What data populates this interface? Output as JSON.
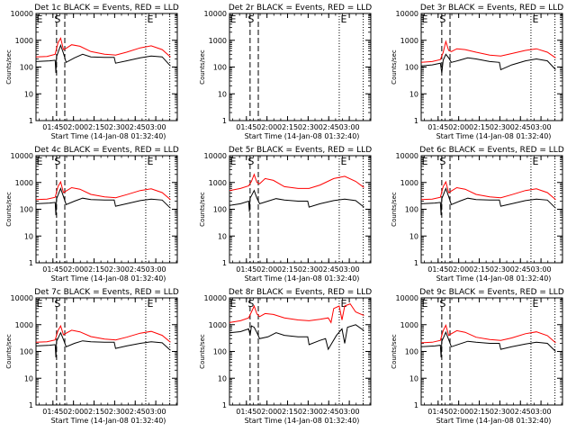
{
  "chart_data": {
    "type": "line",
    "title_template": "Det {det} BLACK = Events, RED = LLD",
    "xlabel": "Start Time (14-Jan-08 01:32:40)",
    "ylabel": "Counts/sec",
    "xlim_minutes": [
      0,
      103
    ],
    "ylim": [
      1,
      10000
    ],
    "y_scale": "log",
    "x_tick_labels": [
      "01:45",
      "02:00",
      "02:15",
      "02:30",
      "02:45",
      "03:00"
    ],
    "x_tick_minutes": [
      12.33,
      27.33,
      42.33,
      57.33,
      72.33,
      87.33
    ],
    "y_tick_labels": [
      "1",
      "10",
      "100",
      "1000",
      "10000"
    ],
    "y_tick_values": [
      1,
      10,
      100,
      1000,
      10000
    ],
    "marker_labels": [
      "S",
      "E"
    ],
    "colors": {
      "events": "#000000",
      "lld": "#ff0000"
    },
    "panels": [
      {
        "det": "1c",
        "s_lines": [
          15,
          21
        ],
        "e_line": 80,
        "s_mark": 15,
        "e_mark": 82,
        "events": [
          [
            0,
            160
          ],
          [
            10,
            170
          ],
          [
            14,
            180
          ],
          [
            14.5,
            60
          ],
          [
            15,
            250
          ],
          [
            18,
            650
          ],
          [
            20,
            330
          ],
          [
            22,
            150
          ],
          [
            28,
            220
          ],
          [
            34,
            300
          ],
          [
            40,
            240
          ],
          [
            50,
            230
          ],
          [
            57,
            230
          ],
          [
            58,
            140
          ],
          [
            66,
            170
          ],
          [
            76,
            220
          ],
          [
            84,
            260
          ],
          [
            92,
            240
          ],
          [
            98,
            110
          ]
        ],
        "lld": [
          [
            0,
            240
          ],
          [
            8,
            250
          ],
          [
            14,
            300
          ],
          [
            16,
            800
          ],
          [
            18,
            1200
          ],
          [
            20,
            450
          ],
          [
            22,
            500
          ],
          [
            26,
            680
          ],
          [
            32,
            600
          ],
          [
            40,
            380
          ],
          [
            50,
            300
          ],
          [
            58,
            280
          ],
          [
            66,
            360
          ],
          [
            76,
            520
          ],
          [
            84,
            620
          ],
          [
            92,
            450
          ],
          [
            98,
            240
          ]
        ]
      },
      {
        "det": "2r",
        "s_lines": [
          15,
          21
        ],
        "e_line": 80,
        "s_mark": 15,
        "e_mark": 82,
        "events": [],
        "lld": []
      },
      {
        "det": "3r",
        "s_lines": [
          15,
          21
        ],
        "e_line": 80,
        "s_mark": 15,
        "e_mark": 82,
        "events": [
          [
            0,
            110
          ],
          [
            8,
            120
          ],
          [
            14,
            140
          ],
          [
            15,
            60
          ],
          [
            16,
            180
          ],
          [
            18,
            300
          ],
          [
            20,
            220
          ],
          [
            22,
            150
          ],
          [
            28,
            180
          ],
          [
            34,
            220
          ],
          [
            40,
            200
          ],
          [
            50,
            160
          ],
          [
            57,
            150
          ],
          [
            58,
            80
          ],
          [
            66,
            120
          ],
          [
            76,
            170
          ],
          [
            84,
            200
          ],
          [
            92,
            170
          ],
          [
            98,
            80
          ]
        ],
        "lld": [
          [
            0,
            150
          ],
          [
            8,
            160
          ],
          [
            14,
            190
          ],
          [
            16,
            350
          ],
          [
            18,
            900
          ],
          [
            20,
            420
          ],
          [
            22,
            380
          ],
          [
            26,
            480
          ],
          [
            32,
            450
          ],
          [
            40,
            360
          ],
          [
            50,
            280
          ],
          [
            58,
            260
          ],
          [
            66,
            320
          ],
          [
            76,
            420
          ],
          [
            84,
            480
          ],
          [
            92,
            360
          ],
          [
            98,
            220
          ]
        ]
      },
      {
        "det": "4c",
        "s_lines": [
          15,
          21
        ],
        "e_line": 80,
        "s_mark": 15,
        "e_mark": 82,
        "events": [
          [
            0,
            160
          ],
          [
            10,
            170
          ],
          [
            14,
            180
          ],
          [
            14.5,
            60
          ],
          [
            15,
            250
          ],
          [
            18,
            600
          ],
          [
            20,
            300
          ],
          [
            22,
            150
          ],
          [
            28,
            200
          ],
          [
            34,
            260
          ],
          [
            40,
            230
          ],
          [
            50,
            220
          ],
          [
            57,
            220
          ],
          [
            58,
            130
          ],
          [
            66,
            160
          ],
          [
            76,
            210
          ],
          [
            84,
            240
          ],
          [
            92,
            220
          ],
          [
            98,
            110
          ]
        ],
        "lld": [
          [
            0,
            230
          ],
          [
            8,
            240
          ],
          [
            14,
            280
          ],
          [
            16,
            700
          ],
          [
            18,
            1050
          ],
          [
            20,
            420
          ],
          [
            22,
            480
          ],
          [
            26,
            640
          ],
          [
            32,
            560
          ],
          [
            40,
            360
          ],
          [
            50,
            290
          ],
          [
            58,
            270
          ],
          [
            66,
            350
          ],
          [
            76,
            500
          ],
          [
            84,
            580
          ],
          [
            92,
            420
          ],
          [
            98,
            230
          ]
        ]
      },
      {
        "det": "5r",
        "s_lines": [
          15,
          21
        ],
        "e_line": 80,
        "s_mark": 15,
        "e_mark": 82,
        "events": [
          [
            0,
            140
          ],
          [
            8,
            160
          ],
          [
            14,
            200
          ],
          [
            14.5,
            80
          ],
          [
            15,
            260
          ],
          [
            18,
            500
          ],
          [
            20,
            260
          ],
          [
            22,
            160
          ],
          [
            28,
            200
          ],
          [
            34,
            250
          ],
          [
            40,
            220
          ],
          [
            50,
            200
          ],
          [
            57,
            200
          ],
          [
            58,
            120
          ],
          [
            66,
            160
          ],
          [
            76,
            210
          ],
          [
            84,
            240
          ],
          [
            92,
            210
          ],
          [
            98,
            120
          ]
        ],
        "lld": [
          [
            0,
            500
          ],
          [
            8,
            600
          ],
          [
            14,
            750
          ],
          [
            16,
            1100
          ],
          [
            18,
            2000
          ],
          [
            20,
            1000
          ],
          [
            22,
            900
          ],
          [
            26,
            1400
          ],
          [
            32,
            1200
          ],
          [
            40,
            700
          ],
          [
            50,
            600
          ],
          [
            58,
            600
          ],
          [
            66,
            800
          ],
          [
            76,
            1400
          ],
          [
            84,
            1700
          ],
          [
            92,
            1100
          ],
          [
            98,
            650
          ]
        ]
      },
      {
        "det": "6c",
        "s_lines": [
          15,
          21
        ],
        "e_line": 80,
        "s_mark": 15,
        "e_mark": 82,
        "events": [
          [
            0,
            160
          ],
          [
            10,
            170
          ],
          [
            14,
            180
          ],
          [
            14.5,
            60
          ],
          [
            15,
            250
          ],
          [
            18,
            600
          ],
          [
            20,
            300
          ],
          [
            22,
            150
          ],
          [
            28,
            200
          ],
          [
            34,
            260
          ],
          [
            40,
            230
          ],
          [
            50,
            220
          ],
          [
            57,
            220
          ],
          [
            58,
            130
          ],
          [
            66,
            160
          ],
          [
            76,
            210
          ],
          [
            84,
            240
          ],
          [
            92,
            220
          ],
          [
            98,
            110
          ]
        ],
        "lld": [
          [
            0,
            230
          ],
          [
            8,
            240
          ],
          [
            14,
            280
          ],
          [
            16,
            700
          ],
          [
            18,
            1050
          ],
          [
            20,
            420
          ],
          [
            22,
            480
          ],
          [
            26,
            640
          ],
          [
            32,
            560
          ],
          [
            40,
            360
          ],
          [
            50,
            290
          ],
          [
            58,
            270
          ],
          [
            66,
            350
          ],
          [
            76,
            500
          ],
          [
            84,
            580
          ],
          [
            92,
            420
          ],
          [
            98,
            230
          ]
        ]
      },
      {
        "det": "7c",
        "s_lines": [
          15,
          21
        ],
        "e_line": 80,
        "s_mark": 15,
        "e_mark": 82,
        "events": [
          [
            0,
            160
          ],
          [
            10,
            170
          ],
          [
            14,
            180
          ],
          [
            14.5,
            60
          ],
          [
            15,
            240
          ],
          [
            18,
            500
          ],
          [
            20,
            280
          ],
          [
            22,
            150
          ],
          [
            28,
            200
          ],
          [
            34,
            250
          ],
          [
            40,
            230
          ],
          [
            50,
            220
          ],
          [
            57,
            220
          ],
          [
            58,
            130
          ],
          [
            66,
            160
          ],
          [
            76,
            200
          ],
          [
            84,
            230
          ],
          [
            92,
            210
          ],
          [
            98,
            110
          ]
        ],
        "lld": [
          [
            0,
            220
          ],
          [
            8,
            230
          ],
          [
            14,
            270
          ],
          [
            16,
            600
          ],
          [
            18,
            900
          ],
          [
            20,
            420
          ],
          [
            22,
            480
          ],
          [
            26,
            620
          ],
          [
            32,
            540
          ],
          [
            40,
            360
          ],
          [
            50,
            290
          ],
          [
            58,
            270
          ],
          [
            66,
            340
          ],
          [
            76,
            480
          ],
          [
            84,
            560
          ],
          [
            92,
            400
          ],
          [
            98,
            220
          ]
        ]
      },
      {
        "det": "8r",
        "s_lines": [
          15,
          21
        ],
        "e_line": 80,
        "s_mark": 15,
        "e_mark": 82,
        "events": [
          [
            0,
            500
          ],
          [
            8,
            550
          ],
          [
            14,
            700
          ],
          [
            15,
            400
          ],
          [
            16,
            900
          ],
          [
            18,
            800
          ],
          [
            20,
            500
          ],
          [
            22,
            300
          ],
          [
            28,
            350
          ],
          [
            34,
            500
          ],
          [
            40,
            400
          ],
          [
            50,
            350
          ],
          [
            57,
            350
          ],
          [
            58,
            180
          ],
          [
            66,
            260
          ],
          [
            70,
            300
          ],
          [
            72,
            120
          ],
          [
            78,
            400
          ],
          [
            82,
            700
          ],
          [
            84,
            200
          ],
          [
            86,
            800
          ],
          [
            92,
            1000
          ],
          [
            98,
            600
          ]
        ],
        "lld": [
          [
            0,
            1200
          ],
          [
            8,
            1400
          ],
          [
            14,
            1800
          ],
          [
            16,
            3000
          ],
          [
            18,
            5000
          ],
          [
            20,
            2500
          ],
          [
            22,
            2000
          ],
          [
            26,
            2600
          ],
          [
            32,
            2400
          ],
          [
            40,
            1800
          ],
          [
            50,
            1500
          ],
          [
            58,
            1400
          ],
          [
            66,
            1600
          ],
          [
            72,
            1800
          ],
          [
            74,
            1200
          ],
          [
            76,
            4000
          ],
          [
            80,
            5000
          ],
          [
            82,
            1500
          ],
          [
            84,
            5000
          ],
          [
            88,
            6000
          ],
          [
            92,
            3000
          ],
          [
            98,
            2200
          ]
        ]
      },
      {
        "det": "9c",
        "s_lines": [
          15,
          21
        ],
        "e_line": 80,
        "s_mark": 15,
        "e_mark": 82,
        "events": [
          [
            0,
            150
          ],
          [
            10,
            160
          ],
          [
            14,
            170
          ],
          [
            14.5,
            60
          ],
          [
            15,
            240
          ],
          [
            18,
            520
          ],
          [
            20,
            280
          ],
          [
            22,
            150
          ],
          [
            28,
            190
          ],
          [
            34,
            240
          ],
          [
            40,
            220
          ],
          [
            50,
            200
          ],
          [
            57,
            200
          ],
          [
            58,
            120
          ],
          [
            66,
            150
          ],
          [
            76,
            190
          ],
          [
            84,
            220
          ],
          [
            92,
            200
          ],
          [
            98,
            100
          ]
        ],
        "lld": [
          [
            0,
            210
          ],
          [
            8,
            220
          ],
          [
            14,
            260
          ],
          [
            16,
            600
          ],
          [
            18,
            950
          ],
          [
            20,
            400
          ],
          [
            22,
            460
          ],
          [
            26,
            600
          ],
          [
            32,
            520
          ],
          [
            40,
            340
          ],
          [
            50,
            280
          ],
          [
            58,
            260
          ],
          [
            66,
            320
          ],
          [
            76,
            460
          ],
          [
            84,
            540
          ],
          [
            92,
            390
          ],
          [
            98,
            210
          ]
        ]
      }
    ]
  }
}
